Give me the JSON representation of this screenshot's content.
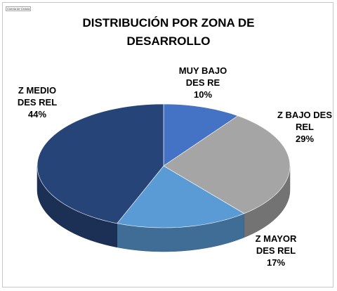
{
  "chart_data": {
    "type": "pie",
    "title": "DISTRIBUCIÓN POR ZONA DE DESARROLLO",
    "field_button": "Cuenta de Cedula",
    "categories": [
      "MUY BAJO DES RE",
      "Z BAJO DES REL",
      "Z MAYOR DES REL",
      "Z MEDIO DES REL"
    ],
    "values": [
      10,
      29,
      17,
      44
    ],
    "value_labels": [
      "10%",
      "29%",
      "17%",
      "44%"
    ],
    "colors": [
      "#4472c4",
      "#a5a5a5",
      "#5b9bd5",
      "#264478"
    ]
  }
}
